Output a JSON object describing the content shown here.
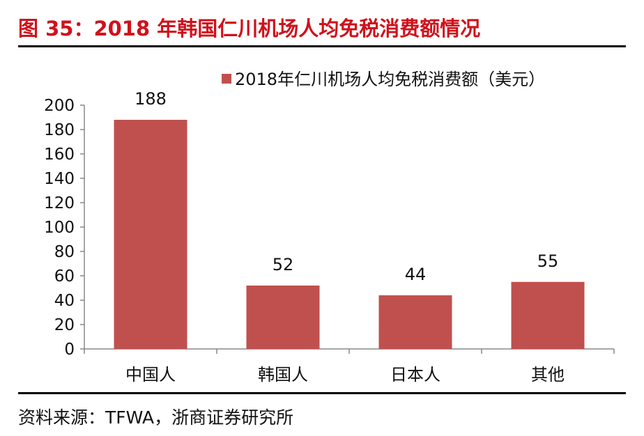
{
  "title": "图 35：2018 年韩国仁川机场人均免税消费额情况",
  "source": "资料来源：TFWA，浙商证券研究所",
  "chart_data": {
    "type": "bar",
    "categories": [
      "中国人",
      "韩国人",
      "日本人",
      "其他"
    ],
    "series": [
      {
        "name": "2018年仁川机场人均免税消费额（美元）",
        "values": [
          188,
          52,
          44,
          55
        ],
        "color": "#c0504d"
      }
    ],
    "ylim": [
      0,
      200
    ],
    "yticks": [
      0,
      20,
      40,
      60,
      80,
      100,
      120,
      140,
      160,
      180,
      200
    ],
    "data_labels": true,
    "grid": false,
    "legend_position": "top"
  }
}
